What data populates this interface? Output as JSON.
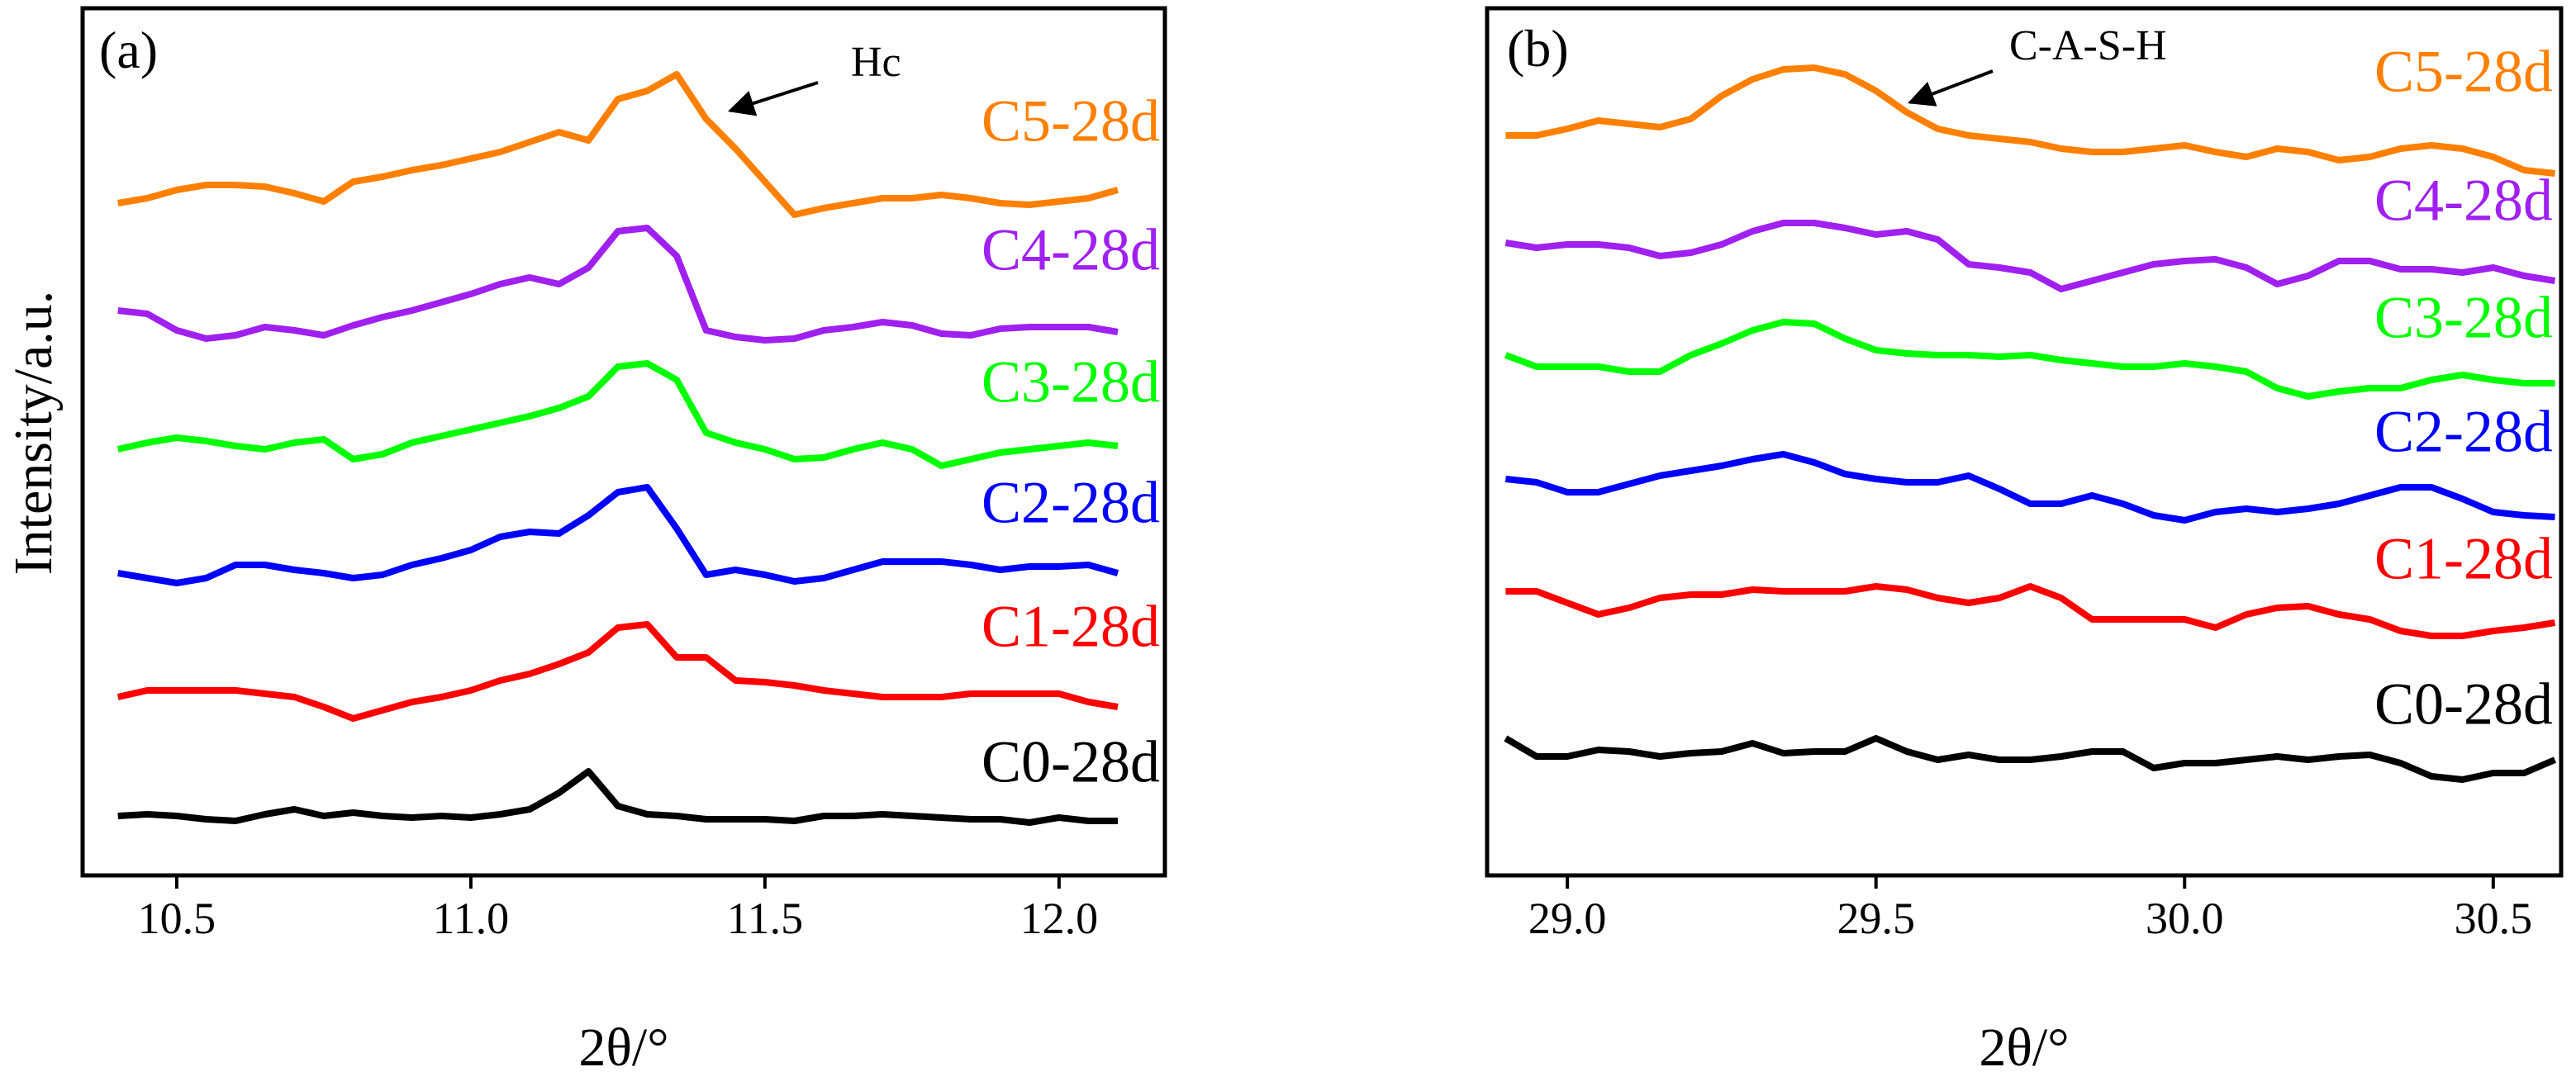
{
  "chart_data": [
    {
      "type": "line",
      "title": "(a)",
      "xlabel": "2θ/°",
      "ylabel": "Intensity/a.u.",
      "annotations": [
        {
          "text": "Hc"
        }
      ],
      "xlim": [
        10.34,
        12.18
      ],
      "xticks": [
        10.5,
        {
          "value": 11,
          "label": "11.0"
        },
        11.5,
        {
          "value": 12,
          "label": "12.0"
        }
      ],
      "ylim": [
        0,
        105
      ],
      "x": [
        10.4,
        10.45,
        10.5,
        10.55,
        10.6,
        10.65,
        10.7,
        10.75,
        10.8,
        10.85,
        10.9,
        10.95,
        11.0,
        11.05,
        11.1,
        11.15,
        11.2,
        11.25,
        11.3,
        11.35,
        11.4,
        11.45,
        11.5,
        11.55,
        11.6,
        11.65,
        11.7,
        11.75,
        11.8,
        11.85,
        11.9,
        11.95,
        12.0,
        12.05,
        12.1
      ],
      "series": [
        {
          "name": "C0-28d",
          "color": "#000000",
          "values": [
            7.2,
            7.4,
            7.2,
            6.8,
            6.6,
            7.4,
            8,
            7.2,
            7.6,
            7.2,
            7,
            7.2,
            7,
            7.4,
            8,
            10,
            12.6,
            8.4,
            7.4,
            7.2,
            6.8,
            6.8,
            6.8,
            6.6,
            7.2,
            7.2,
            7.4,
            7.2,
            7,
            6.8,
            6.8,
            6.4,
            7,
            6.6,
            6.6
          ]
        },
        {
          "name": "C1-28d",
          "color": "#ff0000",
          "values": [
            21.6,
            22.4,
            22.4,
            22.4,
            22.4,
            22,
            21.6,
            20.4,
            19,
            20,
            21,
            21.6,
            22.4,
            23.6,
            24.4,
            25.6,
            27,
            30,
            30.4,
            26.4,
            26.4,
            23.6,
            23.4,
            23,
            22.4,
            22,
            21.6,
            21.6,
            21.6,
            22,
            22,
            22,
            22,
            21,
            20.4
          ]
        },
        {
          "name": "C2-28d",
          "color": "#0000ff",
          "values": [
            36.6,
            36,
            35.4,
            36,
            37.6,
            37.6,
            37,
            36.6,
            36,
            36.4,
            37.6,
            38.4,
            39.4,
            41,
            41.6,
            41.4,
            43.6,
            46.4,
            47,
            42,
            36.4,
            37,
            36.4,
            35.6,
            36,
            37,
            38,
            38,
            38,
            37.6,
            37,
            37.4,
            37.4,
            37.6,
            36.6
          ]
        },
        {
          "name": "C3-28d",
          "color": "#00ff00",
          "values": [
            51.6,
            52.4,
            53,
            52.6,
            52,
            51.6,
            52.4,
            52.8,
            50.4,
            51,
            52.4,
            53.2,
            54,
            54.8,
            55.6,
            56.6,
            58,
            61.6,
            62,
            60,
            53.6,
            52.4,
            51.6,
            50.4,
            50.6,
            51.6,
            52.4,
            51.6,
            49.6,
            50.4,
            51.2,
            51.6,
            52,
            52.4,
            52
          ]
        },
        {
          "name": "C4-28d",
          "color": "#a020f0",
          "values": [
            68.4,
            68,
            66,
            65,
            65.4,
            66.4,
            66,
            65.4,
            66.6,
            67.6,
            68.4,
            69.4,
            70.4,
            71.6,
            72.4,
            71.6,
            73.6,
            78,
            78.4,
            75,
            66,
            65.2,
            64.8,
            65,
            66,
            66.4,
            67,
            66.6,
            65.6,
            65.4,
            66.2,
            66.4,
            66.4,
            66.4,
            65.8
          ]
        },
        {
          "name": "C5-28d",
          "color": "#ff8000",
          "values": [
            81.4,
            82,
            83,
            83.6,
            83.6,
            83.4,
            82.6,
            81.6,
            84,
            84.6,
            85.4,
            86,
            86.8,
            87.6,
            88.8,
            90,
            89,
            94,
            95,
            97,
            91.6,
            88,
            84,
            80,
            80.8,
            81.4,
            82,
            82,
            82.4,
            82,
            81.4,
            81.2,
            81.6,
            82,
            83
          ]
        }
      ]
    },
    {
      "type": "line",
      "title": "(b)",
      "xlabel": "2θ/°",
      "annotations": [
        {
          "text": "C-A-S-H"
        }
      ],
      "xlim": [
        28.87,
        30.61
      ],
      "xticks": [
        {
          "value": 29,
          "label": "29.0"
        },
        29.5,
        {
          "value": 30,
          "label": "30.0"
        },
        30.5
      ],
      "ylim": [
        0,
        105
      ],
      "x": [
        28.9,
        28.95,
        29.0,
        29.05,
        29.1,
        29.15,
        29.2,
        29.25,
        29.3,
        29.35,
        29.4,
        29.45,
        29.5,
        29.55,
        29.6,
        29.65,
        29.7,
        29.75,
        29.8,
        29.85,
        29.9,
        29.95,
        30.0,
        30.05,
        30.1,
        30.15,
        30.2,
        30.25,
        30.3,
        30.35,
        30.4,
        30.45,
        30.5,
        30.55,
        30.6
      ],
      "series": [
        {
          "name": "C0-28d",
          "color": "#000000",
          "values": [
            16.6,
            14.4,
            14.4,
            15.2,
            15,
            14.4,
            14.8,
            15,
            16,
            14.8,
            15,
            15,
            16.6,
            15,
            14,
            14.6,
            14,
            14,
            14.4,
            15,
            15,
            13,
            13.6,
            13.6,
            14,
            14.4,
            14,
            14.4,
            14.6,
            13.6,
            12,
            11.6,
            12.4,
            12.4,
            14
          ]
        },
        {
          "name": "C1-28d",
          "color": "#ff0000",
          "values": [
            34.4,
            34.4,
            33,
            31.6,
            32.4,
            33.6,
            34,
            34,
            34.6,
            34.4,
            34.4,
            34.4,
            35,
            34.6,
            33.6,
            33,
            33.6,
            35,
            33.6,
            31,
            31,
            31,
            31,
            30,
            31.6,
            32.4,
            32.6,
            31.6,
            31,
            29.6,
            29,
            29,
            29.6,
            30,
            30.6
          ]
        },
        {
          "name": "C2-28d",
          "color": "#0000ff",
          "values": [
            48,
            47.6,
            46.4,
            46.4,
            47.4,
            48.4,
            49,
            49.6,
            50.4,
            51,
            50,
            48.6,
            48,
            47.6,
            47.6,
            48.4,
            46.8,
            45,
            45,
            46,
            45,
            43.6,
            43,
            44,
            44.4,
            44,
            44.4,
            45,
            46,
            47,
            47,
            45.6,
            44,
            43.6,
            43.4
          ]
        },
        {
          "name": "C3-28d",
          "color": "#00ff00",
          "values": [
            63,
            61.6,
            61.6,
            61.6,
            61,
            61,
            63,
            64.4,
            66,
            67,
            66.8,
            65,
            63.6,
            63.2,
            63,
            63,
            62.8,
            63,
            62.4,
            62,
            61.6,
            61.6,
            62,
            61.6,
            61,
            59,
            58,
            58.6,
            59,
            59,
            60,
            60.6,
            60,
            59.6,
            59.6
          ]
        },
        {
          "name": "C4-28d",
          "color": "#a020f0",
          "values": [
            76.6,
            76,
            76.4,
            76.4,
            76,
            75,
            75.4,
            76.4,
            78,
            79,
            79,
            78.4,
            77.6,
            78,
            77,
            74,
            73.6,
            73,
            71,
            72,
            73,
            74,
            74.4,
            74.6,
            73.6,
            71.6,
            72.6,
            74.4,
            74.4,
            73.4,
            73.4,
            73,
            73.6,
            72.6,
            72
          ]
        },
        {
          "name": "C5-28d",
          "color": "#ff8000",
          "values": [
            89.6,
            89.6,
            90.4,
            91.4,
            91,
            90.6,
            91.6,
            94.4,
            96.4,
            97.6,
            97.8,
            97,
            95,
            92.4,
            90.4,
            89.6,
            89.2,
            88.8,
            88,
            87.6,
            87.6,
            88,
            88.4,
            87.6,
            87,
            88,
            87.6,
            86.6,
            87,
            88,
            88.4,
            88,
            87,
            85.4,
            85
          ]
        }
      ]
    }
  ]
}
